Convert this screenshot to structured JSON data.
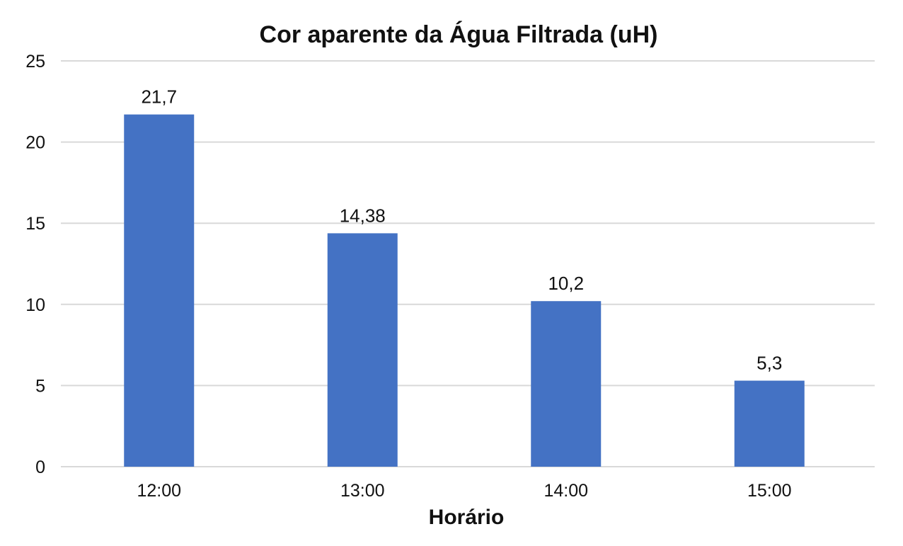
{
  "chart_data": {
    "type": "bar",
    "title": "Cor aparente da Água Filtrada (uH)",
    "xlabel": "Horário",
    "ylabel": "",
    "categories": [
      "12:00",
      "13:00",
      "14:00",
      "15:00"
    ],
    "values": [
      21.7,
      14.38,
      10.2,
      5.3
    ],
    "data_labels": [
      "21,7",
      "14,38",
      "10,2",
      "5,3"
    ],
    "ylim": [
      0,
      25
    ],
    "yticks": [
      0,
      5,
      10,
      15,
      20,
      25
    ],
    "grid": true,
    "legend": "none",
    "bar_color": "#4472c4"
  }
}
